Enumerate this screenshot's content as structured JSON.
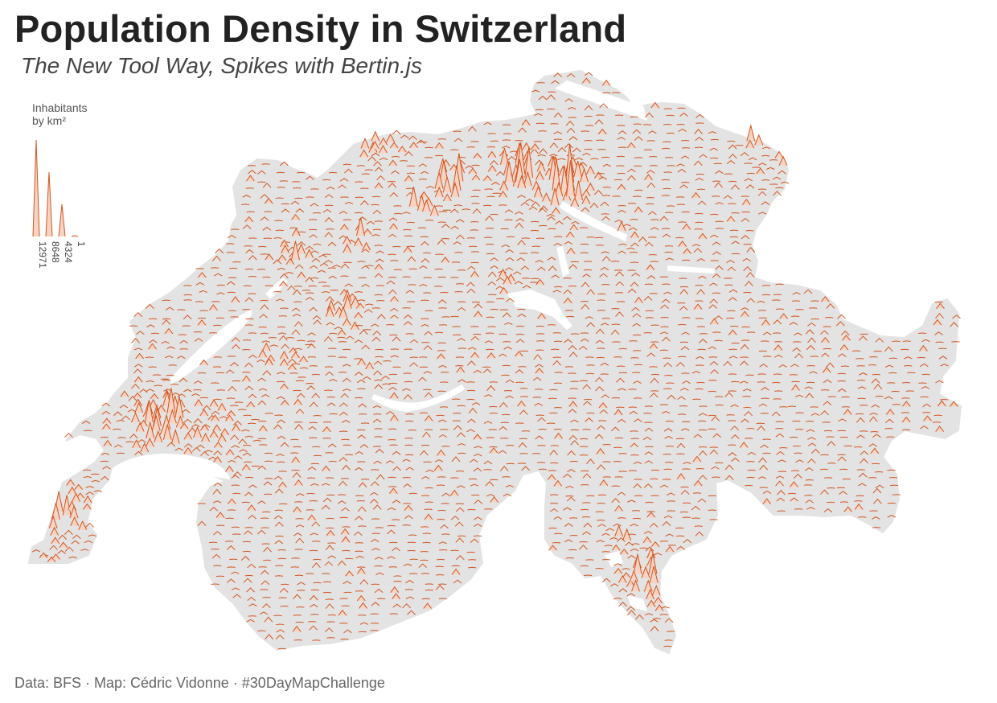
{
  "title": "Population Density in Switzerland",
  "subtitle": "The New Tool Way, Spikes with Bertin.js",
  "source": "Data: BFS · Map: Cédric Vidonne · #30DayMapChallenge",
  "colors": {
    "land": "#e3e3e3",
    "lakes": "#ffffff",
    "spike_stroke": "#d4561f",
    "spike_fill": "#f6d3c3"
  },
  "legend": {
    "title_line1": "Inhabitants",
    "title_line2": "by km²",
    "values": [
      "12971",
      "8648",
      "4324",
      "1"
    ],
    "max_value": 12971
  },
  "map": {
    "variable": "population density",
    "symbol": "spikes",
    "region": "Switzerland"
  }
}
